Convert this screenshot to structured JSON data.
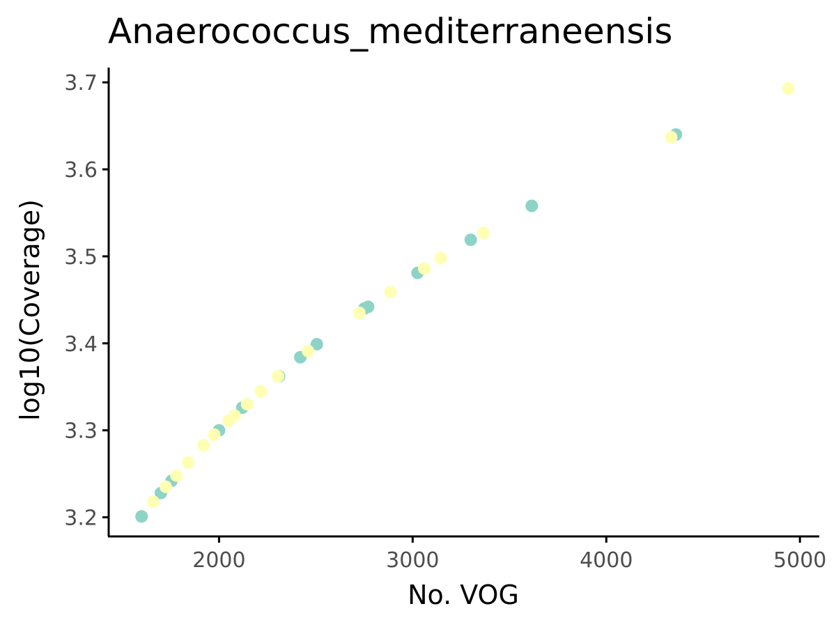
{
  "chart_data": {
    "type": "scatter",
    "title": "Anaerococcus_mediterraneensis",
    "xlabel": "No. VOG",
    "ylabel": "log10(Coverage)",
    "xlim": [
      1430,
      5100
    ],
    "ylim": [
      3.178,
      3.717
    ],
    "x_ticks": [
      2000,
      3000,
      4000,
      5000
    ],
    "y_ticks": [
      3.2,
      3.3,
      3.4,
      3.5,
      3.6,
      3.7
    ],
    "x_tick_labels": [
      "2000",
      "3000",
      "4000",
      "5000"
    ],
    "y_tick_labels": [
      "3.2",
      "3.3",
      "3.4",
      "3.5",
      "3.6",
      "3.7"
    ],
    "grid": false,
    "legend": "none",
    "colors": {
      "teal": "#8dd3c7",
      "yellow": "#ffffb3"
    },
    "series": [
      {
        "color": "#8dd3c7",
        "points": [
          [
            1600,
            3.201
          ],
          [
            1700,
            3.228
          ],
          [
            1755,
            3.242
          ],
          [
            2000,
            3.3
          ],
          [
            2120,
            3.326
          ],
          [
            2310,
            3.362
          ],
          [
            2420,
            3.384
          ],
          [
            2505,
            3.399
          ],
          [
            2750,
            3.44
          ],
          [
            2770,
            3.442
          ],
          [
            3025,
            3.481
          ],
          [
            3300,
            3.519
          ],
          [
            3615,
            3.558
          ],
          [
            4360,
            3.64
          ]
        ]
      },
      {
        "color": "#ffffb3",
        "points": [
          [
            1660,
            3.218
          ],
          [
            1725,
            3.235
          ],
          [
            1780,
            3.248
          ],
          [
            1840,
            3.263
          ],
          [
            1920,
            3.283
          ],
          [
            1975,
            3.295
          ],
          [
            2050,
            3.311
          ],
          [
            2080,
            3.317
          ],
          [
            2145,
            3.33
          ],
          [
            2215,
            3.345
          ],
          [
            2305,
            3.362
          ],
          [
            2460,
            3.391
          ],
          [
            2725,
            3.435
          ],
          [
            2885,
            3.459
          ],
          [
            3060,
            3.486
          ],
          [
            3145,
            3.498
          ],
          [
            3365,
            3.527
          ],
          [
            4335,
            3.637
          ],
          [
            4940,
            3.693
          ]
        ]
      }
    ]
  }
}
